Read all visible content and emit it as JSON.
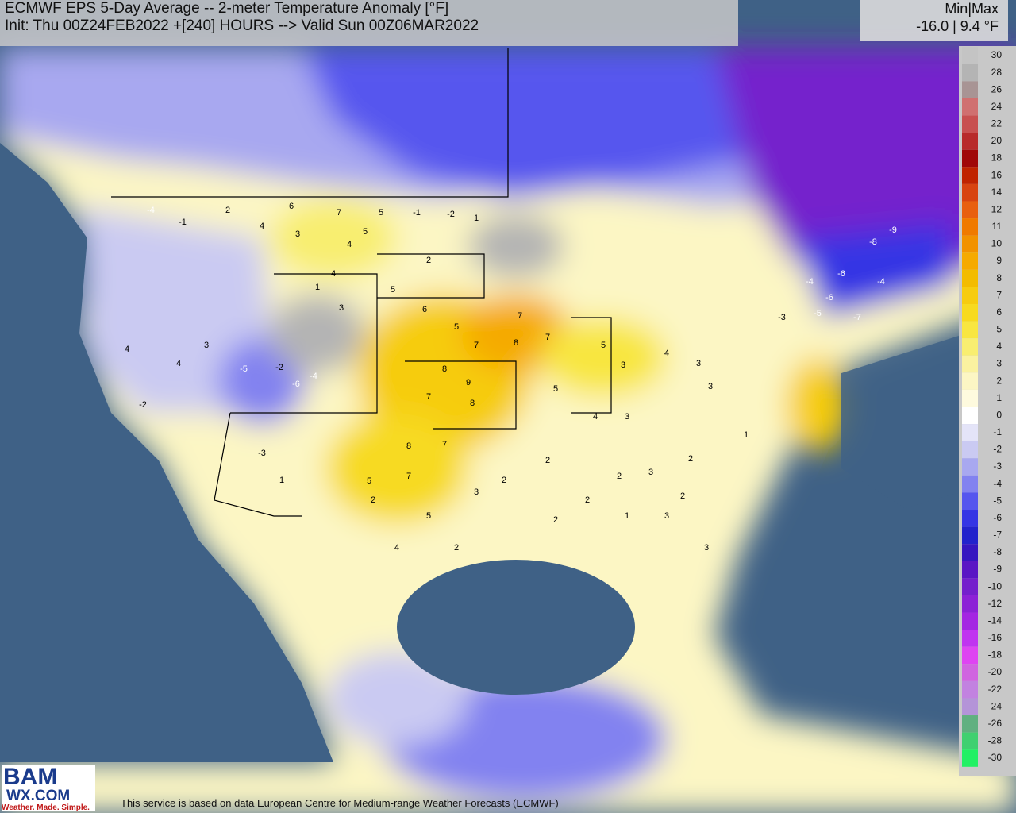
{
  "header": {
    "title": "ECMWF EPS 5-Day Average -- 2-meter Temperature Anomaly [°F]",
    "subtitle": "Init: Thu 00Z24FEB2022 +[240] HOURS --> Valid Sun 00Z06MAR2022"
  },
  "minmax": {
    "label": "Min|Max",
    "value": "-16.0 | 9.4 °F"
  },
  "colorbar": {
    "labels": [
      30,
      28,
      26,
      24,
      22,
      20,
      18,
      16,
      14,
      12,
      11,
      10,
      9,
      8,
      7,
      6,
      5,
      4,
      3,
      2,
      1,
      0,
      -1,
      -2,
      -3,
      -4,
      -5,
      -6,
      -7,
      -8,
      -9,
      -10,
      -12,
      -14,
      -16,
      -18,
      -20,
      -22,
      -24,
      -26,
      -28,
      -30
    ],
    "colors": [
      "#c4c4c4",
      "#b4b4b4",
      "#a89494",
      "#d07070",
      "#c85050",
      "#b82a2a",
      "#a00808",
      "#c02400",
      "#d84410",
      "#e86010",
      "#f07a00",
      "#f29200",
      "#f5aa00",
      "#f3bc00",
      "#f6cc10",
      "#f7da20",
      "#f8e640",
      "#f8ee70",
      "#faf2a0",
      "#fcf6c4",
      "#fefade",
      "#ffffff",
      "#e4e4f8",
      "#cacaf2",
      "#a8a8f0",
      "#8282f0",
      "#5656ee",
      "#3434e4",
      "#2222cc",
      "#3616c0",
      "#5a16c4",
      "#7420cc",
      "#8c22d6",
      "#a426e2",
      "#c034f0",
      "#de44f2",
      "#d064e0",
      "#c282e0",
      "#b494d8",
      "#60b080",
      "#40d070",
      "#22f064"
    ]
  },
  "stations": [
    -4,
    -1,
    2,
    6,
    7,
    5,
    5,
    -1,
    -2,
    1,
    4,
    3,
    4,
    2,
    4,
    1,
    3,
    5,
    6,
    5,
    7,
    7,
    8,
    7,
    9,
    8,
    7,
    8,
    8,
    7,
    5,
    7,
    5,
    3,
    2,
    2,
    4,
    3,
    5,
    3,
    5,
    4,
    3,
    3,
    1,
    2,
    3,
    -5,
    -6,
    -2,
    -4,
    2,
    4,
    -2,
    4,
    4,
    3,
    -3,
    1,
    -9,
    -8,
    -4,
    -6,
    -5,
    -6,
    -7,
    -4,
    -3,
    2,
    2,
    1,
    2,
    2,
    2,
    3,
    3
  ],
  "footer": "This service is based on data European Centre for Medium-range Weather Forecasts (ECMWF)",
  "logo": {
    "top": "BAM",
    "middle": "WX.COM",
    "tagline": "Weather. Made. Simple."
  }
}
